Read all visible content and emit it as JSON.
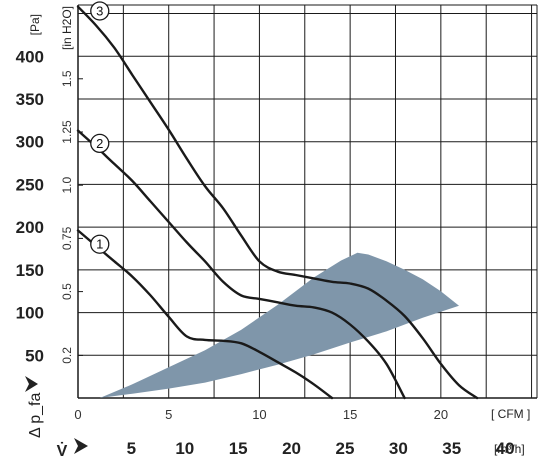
{
  "chart_data": {
    "type": "line",
    "y_axis": {
      "label": "Δ p_fa",
      "unit": "[Pa]",
      "ticks": [
        50,
        100,
        150,
        200,
        250,
        300,
        350,
        400
      ],
      "ylim": [
        0,
        460
      ]
    },
    "y2_axis": {
      "unit": "[in H2O]",
      "ticks": [
        "0.2",
        "0.5",
        "0.75",
        "1.0",
        "1.25",
        "1.5"
      ]
    },
    "x_axis": {
      "unit": "[ CFM ]",
      "ticks": [
        0,
        5,
        10,
        15,
        20
      ],
      "xlim": [
        0,
        25.3
      ]
    },
    "x2_axis": {
      "label": "V̇",
      "unit": "[m³/h]",
      "ticks": [
        5,
        10,
        15,
        20,
        25,
        30,
        35,
        40
      ]
    },
    "series": [
      {
        "name": "1",
        "points": [
          [
            0,
            196
          ],
          [
            1,
            178
          ],
          [
            2,
            160
          ],
          [
            3,
            142
          ],
          [
            4,
            120
          ],
          [
            5,
            95
          ],
          [
            6,
            72
          ],
          [
            7,
            68
          ],
          [
            8,
            67
          ],
          [
            9,
            64
          ],
          [
            10,
            54
          ],
          [
            11,
            42
          ],
          [
            12,
            30
          ],
          [
            13,
            16
          ],
          [
            14,
            0
          ]
        ]
      },
      {
        "name": "2",
        "points": [
          [
            0,
            313
          ],
          [
            1,
            294
          ],
          [
            2,
            274
          ],
          [
            3,
            254
          ],
          [
            4,
            230
          ],
          [
            5,
            206
          ],
          [
            6,
            182
          ],
          [
            7,
            160
          ],
          [
            8,
            136
          ],
          [
            9,
            120
          ],
          [
            10,
            116
          ],
          [
            11,
            112
          ],
          [
            12,
            108
          ],
          [
            13,
            106
          ],
          [
            14,
            100
          ],
          [
            15,
            86
          ],
          [
            16,
            66
          ],
          [
            17,
            40
          ],
          [
            18,
            0
          ]
        ]
      },
      {
        "name": "3",
        "points": [
          [
            0,
            458
          ],
          [
            1,
            436
          ],
          [
            2,
            410
          ],
          [
            3,
            378
          ],
          [
            4,
            346
          ],
          [
            5,
            314
          ],
          [
            6,
            280
          ],
          [
            7,
            248
          ],
          [
            8,
            222
          ],
          [
            9,
            190
          ],
          [
            10,
            160
          ],
          [
            11,
            148
          ],
          [
            12,
            144
          ],
          [
            13,
            140
          ],
          [
            14,
            136
          ],
          [
            15,
            134
          ],
          [
            16,
            128
          ],
          [
            17,
            114
          ],
          [
            18,
            96
          ],
          [
            19,
            70
          ],
          [
            20,
            40
          ],
          [
            21,
            15
          ],
          [
            22,
            0
          ]
        ]
      }
    ],
    "shaded_region": {
      "color": "#7f96aa",
      "outline": [
        [
          1.2,
          0
        ],
        [
          3,
          5
        ],
        [
          5,
          11
        ],
        [
          7,
          18
        ],
        [
          9,
          28
        ],
        [
          11,
          39
        ],
        [
          13,
          51
        ],
        [
          15,
          65
        ],
        [
          17,
          78
        ],
        [
          19,
          94
        ],
        [
          21,
          108
        ],
        [
          20,
          125
        ],
        [
          19,
          139
        ],
        [
          18,
          150
        ],
        [
          17,
          160
        ],
        [
          16,
          168
        ],
        [
          15.4,
          170
        ],
        [
          14.5,
          161
        ],
        [
          13,
          141
        ],
        [
          11,
          109
        ],
        [
          9,
          80
        ],
        [
          7,
          56
        ],
        [
          5,
          36
        ],
        [
          3,
          16
        ]
      ]
    },
    "curve_labels": [
      {
        "text": "1",
        "series": "1"
      },
      {
        "text": "2",
        "series": "2"
      },
      {
        "text": "3",
        "series": "3"
      }
    ],
    "grid": true
  }
}
